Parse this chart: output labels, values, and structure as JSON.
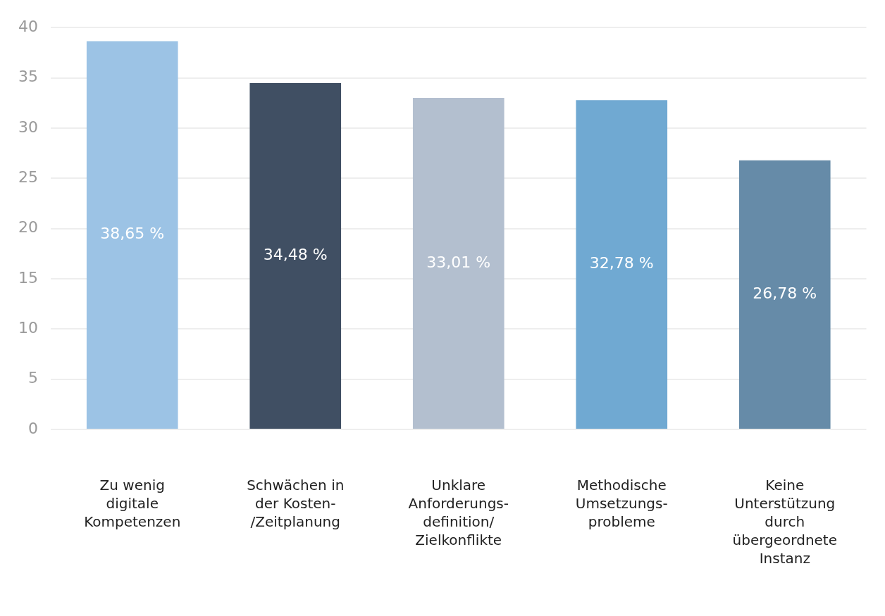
{
  "chart_data": {
    "type": "bar",
    "categories": [
      "Zu wenig\ndigitale\nKompetenzen",
      "Schwächen in\nder Kosten-\n/Zeitplanung",
      "Unklare\nAnforderungs-\ndefinition/\nZielkonflikte",
      "Methodische\nUmsetzungs-\nprobleme",
      "Keine\nUnterstützung\ndurch\nübergeordnete\nInstanz"
    ],
    "values": [
      38.65,
      34.48,
      33.01,
      32.78,
      26.78
    ],
    "colors": [
      "#9cc3e5",
      "#404f63",
      "#b3bfcf",
      "#70a9d2",
      "#668ba8"
    ],
    "value_labels": [
      "38,65 %",
      "34,48 %",
      "33,01 %",
      "32,78 %",
      "26,78 %"
    ],
    "ylim": [
      0,
      40
    ],
    "yticks": [
      0,
      5,
      10,
      15,
      20,
      25,
      30,
      35,
      40
    ],
    "grid": "y",
    "legend": false
  }
}
